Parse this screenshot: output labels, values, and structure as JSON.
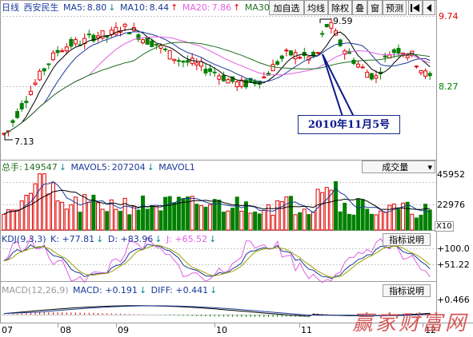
{
  "header": {
    "period": "日线",
    "stock_name": "西安民生",
    "ma5_label": "MA5:",
    "ma5_value": "8.80",
    "ma10_label": "MA10:",
    "ma10_value": "8.44",
    "ma20_label": "MA20:",
    "ma20_value": "7.86",
    "ma30_label": "MA30",
    "buttons": [
      "加自选",
      "均线",
      "除权",
      "叠",
      "窗",
      "预测"
    ],
    "nav_icon": "first-page-icon"
  },
  "price_axis": {
    "top": "9.74",
    "bottom": "8.27"
  },
  "annotations": {
    "high": "9.59",
    "low": "7.13",
    "callout": "2010年11月5号"
  },
  "volume": {
    "label": "总手:",
    "value": "149547",
    "mavol5_label": "MAVOL5:",
    "mavol5_value": "207204",
    "mavol1_label": "MAVOL1",
    "button": "成交量",
    "axis_top": "45952",
    "axis_mid": "22976",
    "axis_unit": "X10"
  },
  "kdj": {
    "label": "KDJ(9,3,3)",
    "k": "K: +77.81",
    "d": "D: +83.96",
    "j": "J: +65.52",
    "button": "指标说明",
    "axis_top": "+100.0",
    "axis_mid": "+51.22"
  },
  "macd": {
    "label": "MACD(12,26,9)",
    "macd": "MACD: +0.191",
    "diff": "DIFF: +0.441",
    "button": "指标说明",
    "axis_top": "+0.466"
  },
  "x_axis": {
    "ticks": [
      "07",
      "08",
      "09",
      "10",
      "11",
      "12"
    ]
  },
  "watermark": "赢家财富网",
  "colors": {
    "up": "#e00000",
    "down": "#008000",
    "ma5": "#000000",
    "ma10": "#1a3a9a",
    "ma20": "#e060e0",
    "ma30": "#207020",
    "grid": "#c8c8c8",
    "callout": "#0a1a8a",
    "watermark": "#d04040"
  },
  "chart_data": {
    "type": "candlestick",
    "price_extremes": {
      "high": 9.59,
      "low": 7.13
    },
    "last_ma": {
      "MA5": 8.8,
      "MA10": 8.44,
      "MA20": 7.86
    },
    "volume_last": 149547,
    "mavol5_last": 207204,
    "kdj_last": {
      "K": 77.81,
      "D": 83.96,
      "J": 65.52
    },
    "macd_last": {
      "MACD": 0.191,
      "DIFF": 0.441
    },
    "x_ticks": [
      "07",
      "08",
      "09",
      "10",
      "11",
      "12"
    ]
  }
}
